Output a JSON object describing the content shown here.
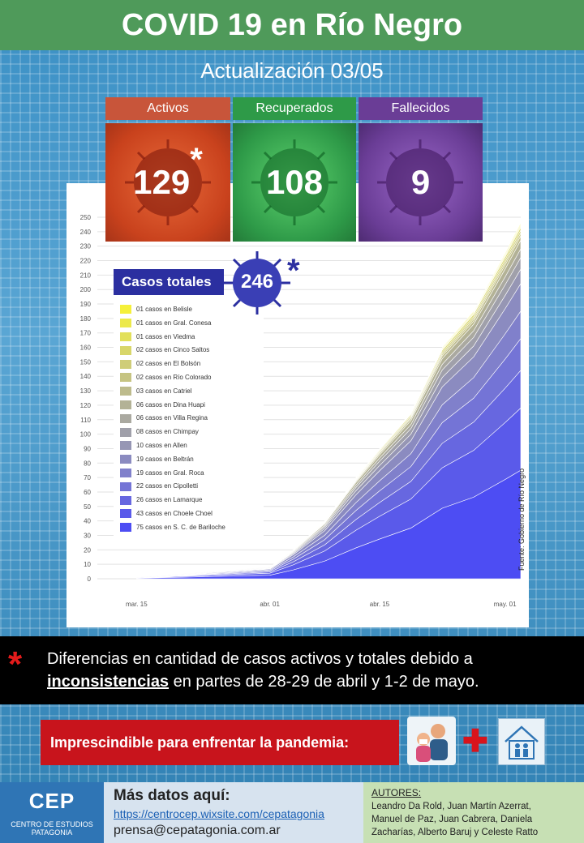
{
  "header": {
    "title": "COVID 19 en Río Negro",
    "update_label": "Actualización  03/05"
  },
  "stats": [
    {
      "label": "Activos",
      "value": "129",
      "asterisk": "*",
      "color": "#c8553a"
    },
    {
      "label": "Recuperados",
      "value": "108",
      "color": "#2e9a48"
    },
    {
      "label": "Fallecidos",
      "value": "9",
      "color": "#6a3d96"
    }
  ],
  "total": {
    "label": "Casos totales",
    "value": "246",
    "asterisk": "*"
  },
  "chart_data": {
    "type": "area",
    "stacked": true,
    "x_ticks": [
      "mar. 15",
      "abr. 01",
      "abr. 15",
      "may. 01"
    ],
    "ylim": [
      0,
      250
    ],
    "y_ticks": [
      0,
      10,
      20,
      30,
      40,
      50,
      60,
      70,
      80,
      90,
      100,
      110,
      120,
      130,
      140,
      150,
      160,
      170,
      180,
      190,
      200,
      210,
      220,
      230,
      240,
      250
    ],
    "grid": true,
    "legend_position": "top-left",
    "final_total": 246,
    "series": [
      {
        "name": "01 casos en Belisle",
        "value": 1,
        "color": "#f5f03a"
      },
      {
        "name": "01 casos en Gral. Conesa",
        "value": 1,
        "color": "#ece94a"
      },
      {
        "name": "01 casos en Viedma",
        "value": 1,
        "color": "#e2e05a"
      },
      {
        "name": "02 casos en Cinco Saltos",
        "value": 2,
        "color": "#d8d66a"
      },
      {
        "name": "02 casos en El Bolsón",
        "value": 2,
        "color": "#cfcd78"
      },
      {
        "name": "02 casos en Río Colorado",
        "value": 2,
        "color": "#c6c482"
      },
      {
        "name": "03 casos en Catriel",
        "value": 3,
        "color": "#bdbb8c"
      },
      {
        "name": "06 casos en Dina Huapi",
        "value": 6,
        "color": "#b3b296"
      },
      {
        "name": "06 casos en Villa Regina",
        "value": 6,
        "color": "#aaa9a0"
      },
      {
        "name": "08 casos en Chimpay",
        "value": 8,
        "color": "#a0a0aa"
      },
      {
        "name": "10 casos en Allen",
        "value": 10,
        "color": "#9696b4"
      },
      {
        "name": "19 casos en Beltrán",
        "value": 19,
        "color": "#8b8bc0"
      },
      {
        "name": "19 casos en Gral. Roca",
        "value": 19,
        "color": "#8080cb"
      },
      {
        "name": "22 casos en Cipolletti",
        "value": 22,
        "color": "#7474d6"
      },
      {
        "name": "26 casos en Lamarque",
        "value": 26,
        "color": "#6767e0"
      },
      {
        "name": "43 casos en Choele Choel",
        "value": 43,
        "color": "#5a5aea"
      },
      {
        "name": "75 casos en S. C. de Bariloche",
        "value": 75,
        "color": "#4d4df3"
      }
    ],
    "total_curve": [
      {
        "x": "mar. 15",
        "y": 1
      },
      {
        "x": "abr. 01",
        "y": 8
      },
      {
        "x": "abr. 04",
        "y": 20
      },
      {
        "x": "abr. 08",
        "y": 40
      },
      {
        "x": "abr. 12",
        "y": 70
      },
      {
        "x": "abr. 15",
        "y": 90
      },
      {
        "x": "abr. 19",
        "y": 115
      },
      {
        "x": "abr. 23",
        "y": 160
      },
      {
        "x": "abr. 27",
        "y": 185
      },
      {
        "x": "may. 01",
        "y": 225
      },
      {
        "x": "may. 03",
        "y": 246
      }
    ],
    "source": "Fuente: Gobierno de Río Negro"
  },
  "note": {
    "asterisk": "*",
    "line1": "Diferencias en cantidad de casos activos y totales debido a",
    "line2_bold": "inconsistencias",
    "line2_rest": " en partes de 28-29 de abril y 1-2 de mayo."
  },
  "banner": {
    "text": "Imprescindible para enfrentar la pandemia:"
  },
  "footer": {
    "logo_text": "CEP",
    "org_line1": "CENTRO DE ESTUDIOS",
    "org_line2": "PATAGONIA",
    "more_label": "Más datos aquí:",
    "url": "https://centrocep.wixsite.com/cepatagonia",
    "email": "prensa@cepatagonia.com.ar",
    "authors_label": "AUTORES:",
    "authors": [
      "Leandro Da Rold, Juan Martín Azerrat,",
      "Manuel de Paz, Juan Cabrera, Daniela",
      "Zacharías, Alberto Baruj y Celeste Ratto"
    ]
  }
}
